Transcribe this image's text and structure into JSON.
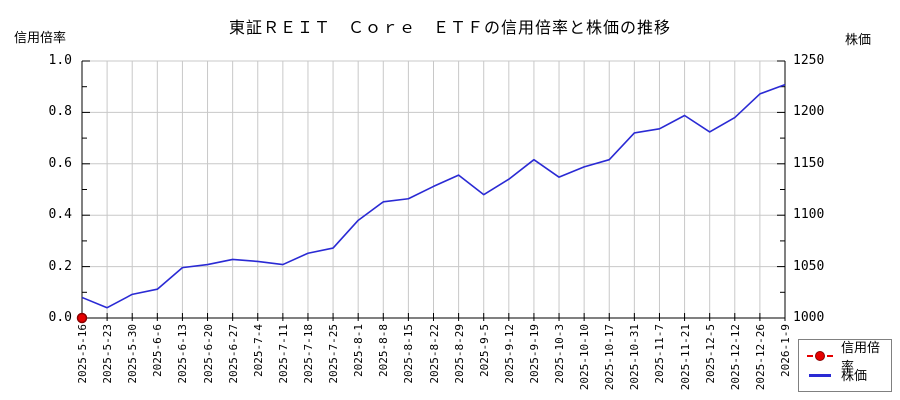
{
  "chart_data": {
    "type": "line",
    "title": "東証ＲＥＩＴ　Ｃｏｒｅ　ＥＴＦの信用倍率と株価の推移",
    "grid": true,
    "legend_position": "bottom-right-outside",
    "colors": {
      "price_line": "#2a2ad4",
      "credit_marker_fill": "#e60000",
      "credit_marker_edge": "#8b0000",
      "gridline": "#c8c8c8",
      "axis": "#000000"
    },
    "y1": {
      "label": "信用倍率",
      "min": 0.0,
      "max": 1.0,
      "major": 0.2,
      "minor": 0.1,
      "ticks": [
        "0.0",
        "0.2",
        "0.4",
        "0.6",
        "0.8",
        "1.0"
      ]
    },
    "y2": {
      "label": "株価",
      "min": 1000,
      "max": 1250,
      "major": 50,
      "minor": 25,
      "ticks": [
        "1000",
        "1050",
        "1100",
        "1150",
        "1200",
        "1250"
      ]
    },
    "categories": [
      "2025-5-16",
      "2025-5-23",
      "2025-5-30",
      "2025-6-6",
      "2025-6-13",
      "2025-6-20",
      "2025-6-27",
      "2025-7-4",
      "2025-7-11",
      "2025-7-18",
      "2025-7-25",
      "2025-8-1",
      "2025-8-8",
      "2025-8-15",
      "2025-8-22",
      "2025-8-29",
      "2025-9-5",
      "2025-9-12",
      "2025-9-19",
      "2025-10-3",
      "2025-10-10",
      "2025-10-17",
      "2025-10-31",
      "2025-11-7",
      "2025-11-21",
      "2025-12-5",
      "2025-12-12",
      "2025-12-26",
      "2026-1-9"
    ],
    "series": [
      {
        "name": "信用倍率",
        "axis": "y1",
        "style": "dashed-with-circle-marker",
        "points": [
          {
            "x": "2025-5-16",
            "y": 0.0
          }
        ]
      },
      {
        "name": "株価",
        "axis": "y2",
        "style": "solid",
        "values": [
          1020,
          1010,
          1023,
          1028,
          1049,
          1052,
          1057,
          1055,
          1052,
          1063,
          1068,
          1095,
          1113,
          1116,
          1128,
          1139,
          1120,
          1135,
          1154,
          1137,
          1147,
          1154,
          1180,
          1184,
          1197,
          1181,
          1195,
          1218,
          1227
        ]
      }
    ]
  }
}
